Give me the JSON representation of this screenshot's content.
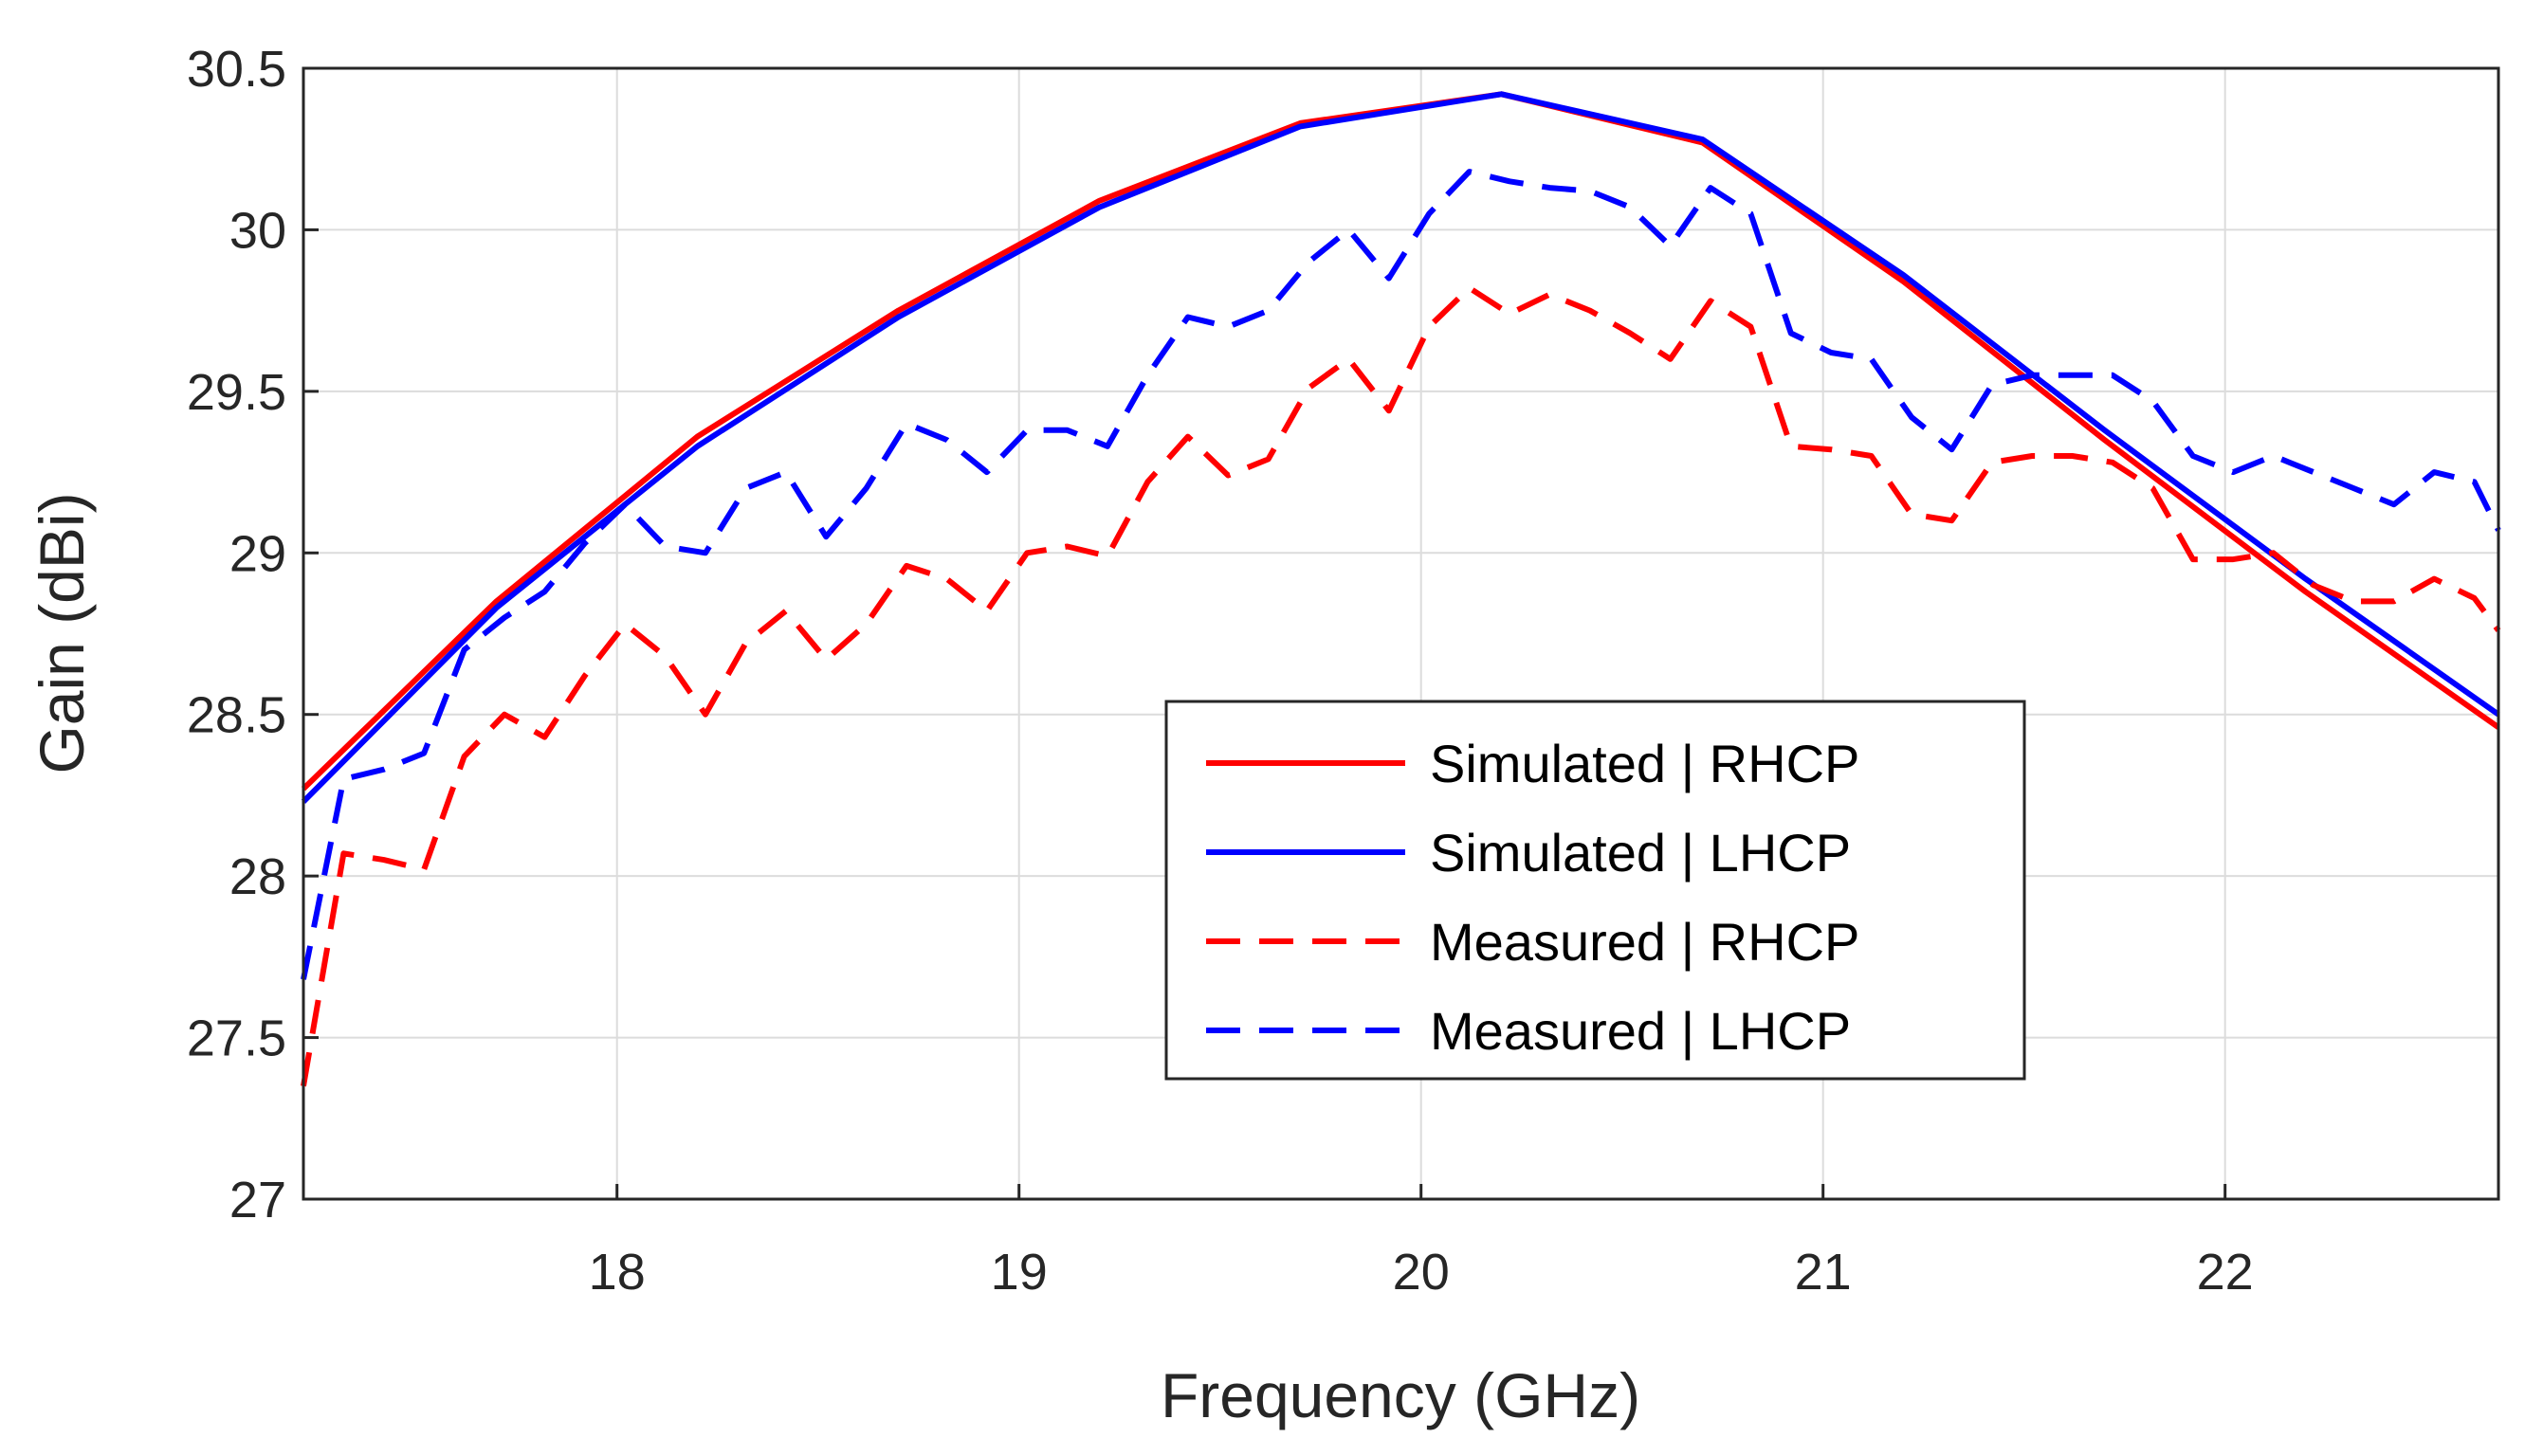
{
  "chart_data": {
    "type": "line",
    "xlabel": "Frequency (GHz)",
    "ylabel": "Gain (dBi)",
    "xlim": [
      17.22,
      22.68
    ],
    "ylim": [
      27,
      30.5
    ],
    "xticks": [
      18,
      19,
      20,
      21,
      22
    ],
    "yticks": [
      27,
      27.5,
      28,
      28.5,
      29,
      29.5,
      30,
      30.5
    ],
    "xtick_labels": [
      "18",
      "19",
      "20",
      "21",
      "22"
    ],
    "ytick_labels": [
      "27",
      "27.5",
      "28",
      "28.5",
      "29",
      "29.5",
      "30",
      "30.5"
    ],
    "grid": true,
    "legend_position": "center-right",
    "series": [
      {
        "name": "Simulated | RHCP",
        "color": "#ff0000",
        "style": "solid",
        "x": [
          17.22,
          17.7,
          18.2,
          18.7,
          19.2,
          19.7,
          20.2,
          20.7,
          21.2,
          21.7,
          22.2,
          22.68
        ],
        "y": [
          28.27,
          28.85,
          29.36,
          29.75,
          30.09,
          30.33,
          30.42,
          30.27,
          29.84,
          29.35,
          28.88,
          28.46
        ]
      },
      {
        "name": "Simulated | LHCP",
        "color": "#0000ff",
        "style": "solid",
        "x": [
          17.22,
          17.7,
          18.2,
          18.7,
          19.2,
          19.7,
          20.2,
          20.7,
          21.2,
          21.7,
          22.2,
          22.68
        ],
        "y": [
          28.23,
          28.83,
          29.33,
          29.73,
          30.07,
          30.32,
          30.42,
          30.28,
          29.86,
          29.38,
          28.92,
          28.5
        ]
      },
      {
        "name": "Measured | RHCP",
        "color": "#ff0000",
        "style": "dashed",
        "x": [
          17.22,
          17.32,
          17.42,
          17.52,
          17.62,
          17.72,
          17.82,
          17.92,
          18.02,
          18.12,
          18.22,
          18.32,
          18.42,
          18.52,
          18.62,
          18.72,
          18.82,
          18.92,
          19.02,
          19.12,
          19.22,
          19.32,
          19.42,
          19.52,
          19.62,
          19.72,
          19.82,
          19.92,
          20.02,
          20.12,
          20.22,
          20.32,
          20.42,
          20.52,
          20.62,
          20.72,
          20.82,
          20.92,
          21.02,
          21.12,
          21.22,
          21.32,
          21.42,
          21.52,
          21.62,
          21.72,
          21.82,
          21.92,
          22.02,
          22.12,
          22.22,
          22.32,
          22.42,
          22.52,
          22.62,
          22.68
        ],
        "y": [
          27.35,
          28.07,
          28.05,
          28.02,
          28.37,
          28.5,
          28.43,
          28.62,
          28.78,
          28.68,
          28.5,
          28.72,
          28.82,
          28.67,
          28.78,
          28.96,
          28.92,
          28.82,
          29.0,
          29.02,
          28.99,
          29.22,
          29.36,
          29.24,
          29.29,
          29.51,
          29.6,
          29.44,
          29.7,
          29.82,
          29.74,
          29.8,
          29.75,
          29.68,
          29.6,
          29.78,
          29.7,
          29.33,
          29.32,
          29.3,
          29.12,
          29.1,
          29.28,
          29.3,
          29.3,
          29.28,
          29.2,
          28.98,
          28.98,
          29.0,
          28.9,
          28.85,
          28.85,
          28.92,
          28.86,
          28.76
        ]
      },
      {
        "name": "Measured | LHCP",
        "color": "#0000ff",
        "style": "dashed",
        "x": [
          17.22,
          17.32,
          17.42,
          17.52,
          17.62,
          17.72,
          17.82,
          17.92,
          18.02,
          18.12,
          18.22,
          18.32,
          18.42,
          18.52,
          18.62,
          18.72,
          18.82,
          18.92,
          19.02,
          19.12,
          19.22,
          19.32,
          19.42,
          19.52,
          19.62,
          19.72,
          19.82,
          19.92,
          20.02,
          20.12,
          20.22,
          20.32,
          20.42,
          20.52,
          20.62,
          20.72,
          20.82,
          20.92,
          21.02,
          21.12,
          21.22,
          21.32,
          21.42,
          21.52,
          21.62,
          21.72,
          21.82,
          21.92,
          22.02,
          22.12,
          22.22,
          22.32,
          22.42,
          22.52,
          22.62,
          22.68
        ],
        "y": [
          27.68,
          28.3,
          28.33,
          28.38,
          28.7,
          28.8,
          28.88,
          29.03,
          29.15,
          29.02,
          29.0,
          29.2,
          29.25,
          29.05,
          29.2,
          29.4,
          29.35,
          29.25,
          29.38,
          29.38,
          29.33,
          29.55,
          29.73,
          29.7,
          29.75,
          29.9,
          30.0,
          29.85,
          30.05,
          30.18,
          30.15,
          30.13,
          30.12,
          30.07,
          29.95,
          30.13,
          30.05,
          29.68,
          29.62,
          29.6,
          29.42,
          29.32,
          29.52,
          29.55,
          29.55,
          29.55,
          29.47,
          29.3,
          29.25,
          29.3,
          29.25,
          29.2,
          29.15,
          29.25,
          29.22,
          29.07
        ]
      }
    ]
  }
}
